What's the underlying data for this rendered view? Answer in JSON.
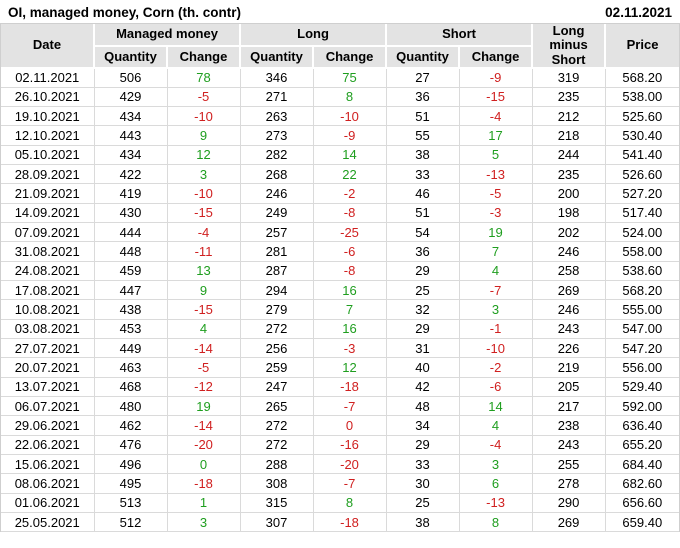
{
  "title": "OI, managed money, Corn (th. contr)",
  "report_date": "02.11.2021",
  "colors": {
    "positive_change": "#1f9e1f",
    "negative_change": "#d02020",
    "header_background": "#e3e3e3",
    "grid_border": "#dadada"
  },
  "table": {
    "col_groups": {
      "date": "Date",
      "managed_money": "Managed money",
      "long": "Long",
      "short": "Short",
      "long_minus_short": "Long minus Short",
      "price": "Price"
    },
    "subheaders": {
      "quantity": "Quantity",
      "change": "Change"
    },
    "rows": [
      {
        "date": "02.11.2021",
        "mm_qty": "506",
        "mm_chg": "78",
        "mm_dir": "up",
        "long_qty": "346",
        "long_chg": "75",
        "long_dir": "up",
        "short_qty": "27",
        "short_chg": "-9",
        "short_dir": "down",
        "net": "319",
        "price": "568.20"
      },
      {
        "date": "26.10.2021",
        "mm_qty": "429",
        "mm_chg": "-5",
        "mm_dir": "down",
        "long_qty": "271",
        "long_chg": "8",
        "long_dir": "up",
        "short_qty": "36",
        "short_chg": "-15",
        "short_dir": "down",
        "net": "235",
        "price": "538.00"
      },
      {
        "date": "19.10.2021",
        "mm_qty": "434",
        "mm_chg": "-10",
        "mm_dir": "down",
        "long_qty": "263",
        "long_chg": "-10",
        "long_dir": "down",
        "short_qty": "51",
        "short_chg": "-4",
        "short_dir": "down",
        "net": "212",
        "price": "525.60"
      },
      {
        "date": "12.10.2021",
        "mm_qty": "443",
        "mm_chg": "9",
        "mm_dir": "up",
        "long_qty": "273",
        "long_chg": "-9",
        "long_dir": "down",
        "short_qty": "55",
        "short_chg": "17",
        "short_dir": "up",
        "net": "218",
        "price": "530.40"
      },
      {
        "date": "05.10.2021",
        "mm_qty": "434",
        "mm_chg": "12",
        "mm_dir": "up",
        "long_qty": "282",
        "long_chg": "14",
        "long_dir": "up",
        "short_qty": "38",
        "short_chg": "5",
        "short_dir": "up",
        "net": "244",
        "price": "541.40"
      },
      {
        "date": "28.09.2021",
        "mm_qty": "422",
        "mm_chg": "3",
        "mm_dir": "up",
        "long_qty": "268",
        "long_chg": "22",
        "long_dir": "up",
        "short_qty": "33",
        "short_chg": "-13",
        "short_dir": "down",
        "net": "235",
        "price": "526.60"
      },
      {
        "date": "21.09.2021",
        "mm_qty": "419",
        "mm_chg": "-10",
        "mm_dir": "down",
        "long_qty": "246",
        "long_chg": "-2",
        "long_dir": "down",
        "short_qty": "46",
        "short_chg": "-5",
        "short_dir": "down",
        "net": "200",
        "price": "527.20"
      },
      {
        "date": "14.09.2021",
        "mm_qty": "430",
        "mm_chg": "-15",
        "mm_dir": "down",
        "long_qty": "249",
        "long_chg": "-8",
        "long_dir": "down",
        "short_qty": "51",
        "short_chg": "-3",
        "short_dir": "down",
        "net": "198",
        "price": "517.40"
      },
      {
        "date": "07.09.2021",
        "mm_qty": "444",
        "mm_chg": "-4",
        "mm_dir": "down",
        "long_qty": "257",
        "long_chg": "-25",
        "long_dir": "down",
        "short_qty": "54",
        "short_chg": "19",
        "short_dir": "up",
        "net": "202",
        "price": "524.00"
      },
      {
        "date": "31.08.2021",
        "mm_qty": "448",
        "mm_chg": "-11",
        "mm_dir": "down",
        "long_qty": "281",
        "long_chg": "-6",
        "long_dir": "down",
        "short_qty": "36",
        "short_chg": "7",
        "short_dir": "up",
        "net": "246",
        "price": "558.00"
      },
      {
        "date": "24.08.2021",
        "mm_qty": "459",
        "mm_chg": "13",
        "mm_dir": "up",
        "long_qty": "287",
        "long_chg": "-8",
        "long_dir": "down",
        "short_qty": "29",
        "short_chg": "4",
        "short_dir": "up",
        "net": "258",
        "price": "538.60"
      },
      {
        "date": "17.08.2021",
        "mm_qty": "447",
        "mm_chg": "9",
        "mm_dir": "up",
        "long_qty": "294",
        "long_chg": "16",
        "long_dir": "up",
        "short_qty": "25",
        "short_chg": "-7",
        "short_dir": "down",
        "net": "269",
        "price": "568.20"
      },
      {
        "date": "10.08.2021",
        "mm_qty": "438",
        "mm_chg": "-15",
        "mm_dir": "down",
        "long_qty": "279",
        "long_chg": "7",
        "long_dir": "up",
        "short_qty": "32",
        "short_chg": "3",
        "short_dir": "up",
        "net": "246",
        "price": "555.00"
      },
      {
        "date": "03.08.2021",
        "mm_qty": "453",
        "mm_chg": "4",
        "mm_dir": "up",
        "long_qty": "272",
        "long_chg": "16",
        "long_dir": "up",
        "short_qty": "29",
        "short_chg": "-1",
        "short_dir": "down",
        "net": "243",
        "price": "547.00"
      },
      {
        "date": "27.07.2021",
        "mm_qty": "449",
        "mm_chg": "-14",
        "mm_dir": "down",
        "long_qty": "256",
        "long_chg": "-3",
        "long_dir": "down",
        "short_qty": "31",
        "short_chg": "-10",
        "short_dir": "down",
        "net": "226",
        "price": "547.20"
      },
      {
        "date": "20.07.2021",
        "mm_qty": "463",
        "mm_chg": "-5",
        "mm_dir": "down",
        "long_qty": "259",
        "long_chg": "12",
        "long_dir": "up",
        "short_qty": "40",
        "short_chg": "-2",
        "short_dir": "down",
        "net": "219",
        "price": "556.00"
      },
      {
        "date": "13.07.2021",
        "mm_qty": "468",
        "mm_chg": "-12",
        "mm_dir": "down",
        "long_qty": "247",
        "long_chg": "-18",
        "long_dir": "down",
        "short_qty": "42",
        "short_chg": "-6",
        "short_dir": "down",
        "net": "205",
        "price": "529.40"
      },
      {
        "date": "06.07.2021",
        "mm_qty": "480",
        "mm_chg": "19",
        "mm_dir": "up",
        "long_qty": "265",
        "long_chg": "-7",
        "long_dir": "down",
        "short_qty": "48",
        "short_chg": "14",
        "short_dir": "up",
        "net": "217",
        "price": "592.00"
      },
      {
        "date": "29.06.2021",
        "mm_qty": "462",
        "mm_chg": "-14",
        "mm_dir": "down",
        "long_qty": "272",
        "long_chg": "0",
        "long_dir": "down",
        "short_qty": "34",
        "short_chg": "4",
        "short_dir": "up",
        "net": "238",
        "price": "636.40"
      },
      {
        "date": "22.06.2021",
        "mm_qty": "476",
        "mm_chg": "-20",
        "mm_dir": "down",
        "long_qty": "272",
        "long_chg": "-16",
        "long_dir": "down",
        "short_qty": "29",
        "short_chg": "-4",
        "short_dir": "down",
        "net": "243",
        "price": "655.20"
      },
      {
        "date": "15.06.2021",
        "mm_qty": "496",
        "mm_chg": "0",
        "mm_dir": "up",
        "long_qty": "288",
        "long_chg": "-20",
        "long_dir": "down",
        "short_qty": "33",
        "short_chg": "3",
        "short_dir": "up",
        "net": "255",
        "price": "684.40"
      },
      {
        "date": "08.06.2021",
        "mm_qty": "495",
        "mm_chg": "-18",
        "mm_dir": "down",
        "long_qty": "308",
        "long_chg": "-7",
        "long_dir": "down",
        "short_qty": "30",
        "short_chg": "6",
        "short_dir": "up",
        "net": "278",
        "price": "682.60"
      },
      {
        "date": "01.06.2021",
        "mm_qty": "513",
        "mm_chg": "1",
        "mm_dir": "up",
        "long_qty": "315",
        "long_chg": "8",
        "long_dir": "up",
        "short_qty": "25",
        "short_chg": "-13",
        "short_dir": "down",
        "net": "290",
        "price": "656.60"
      },
      {
        "date": "25.05.2021",
        "mm_qty": "512",
        "mm_chg": "3",
        "mm_dir": "up",
        "long_qty": "307",
        "long_chg": "-18",
        "long_dir": "down",
        "short_qty": "38",
        "short_chg": "8",
        "short_dir": "up",
        "net": "269",
        "price": "659.40"
      }
    ]
  }
}
